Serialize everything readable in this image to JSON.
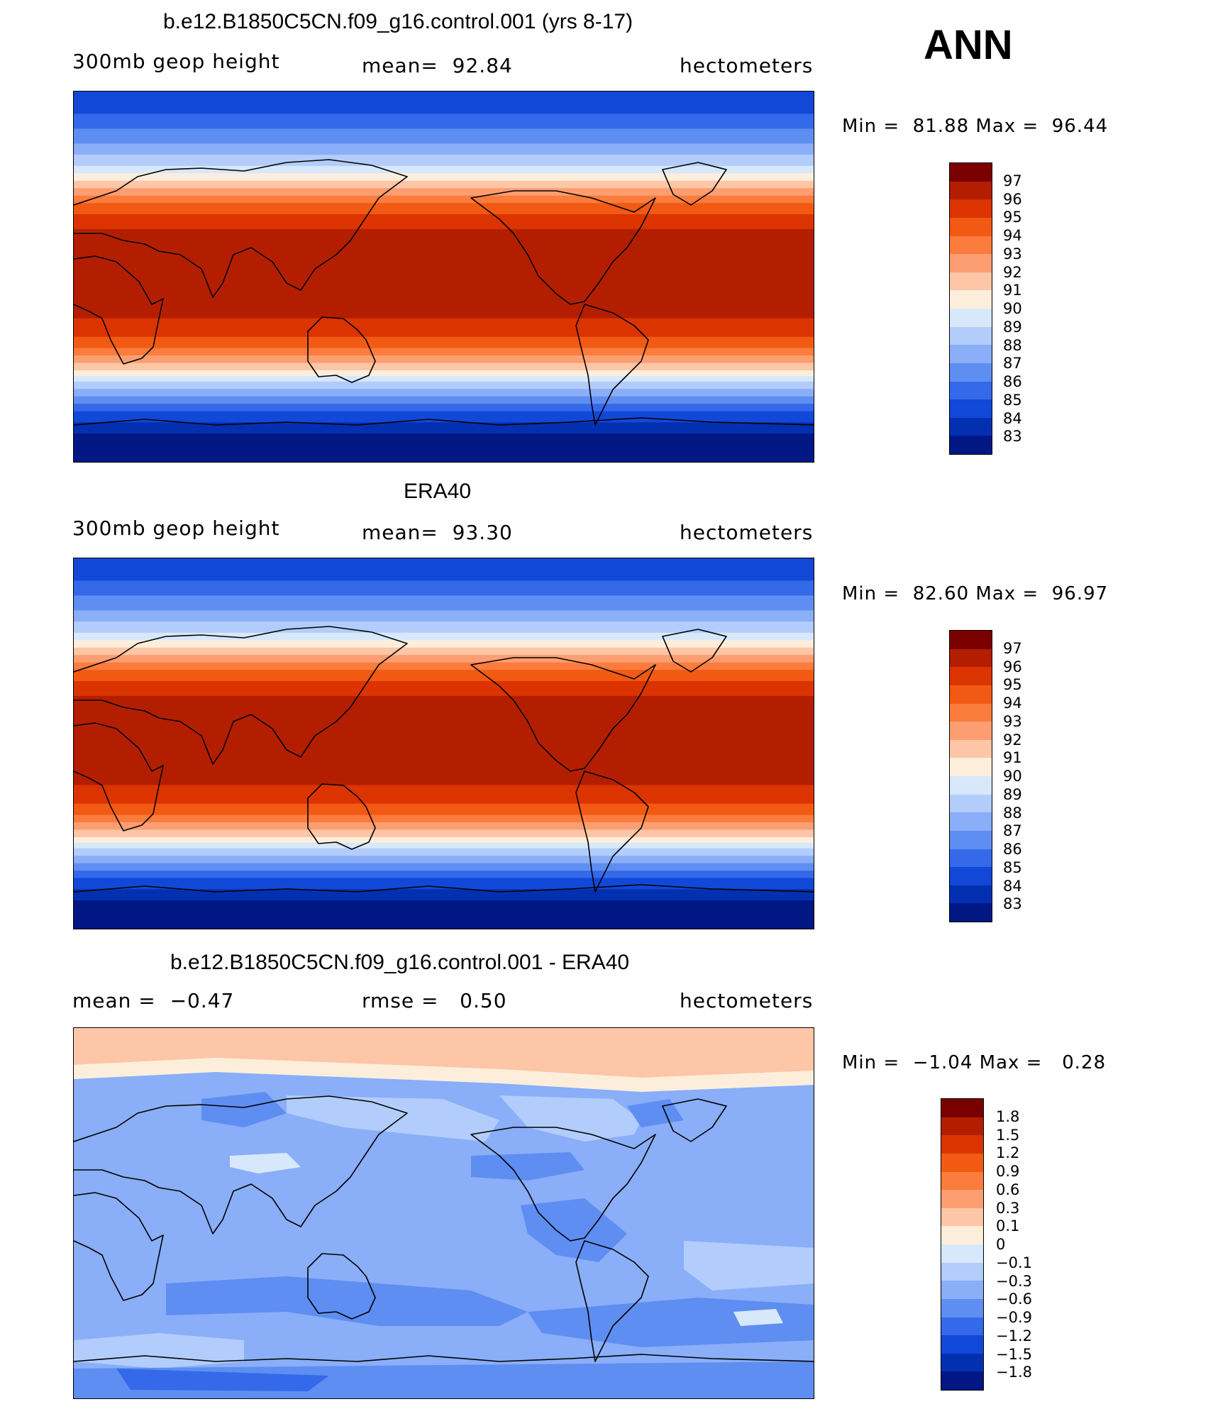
{
  "season": "ANN",
  "panels": [
    {
      "id": "model",
      "title": "b.e12.B1850C5CN.f09_g16.control.001 (yrs 8-17)",
      "left_label": "300mb geop height",
      "center_label": "mean=  92.84",
      "right_label": "hectometers",
      "minmax": "Min =  81.88 Max =  96.44",
      "colorbar_labels": [
        "97",
        "96",
        "95",
        "94",
        "93",
        "92",
        "91",
        "90",
        "89",
        "88",
        "87",
        "86",
        "85",
        "84",
        "83"
      ]
    },
    {
      "id": "obs",
      "title": "ERA40",
      "left_label": "300mb geop height",
      "center_label": "mean=  93.30",
      "right_label": "hectometers",
      "minmax": "Min =  82.60 Max =  96.97",
      "colorbar_labels": [
        "97",
        "96",
        "95",
        "94",
        "93",
        "92",
        "91",
        "90",
        "89",
        "88",
        "87",
        "86",
        "85",
        "84",
        "83"
      ]
    },
    {
      "id": "diff",
      "title": "b.e12.B1850C5CN.f09_g16.control.001 - ERA40",
      "left_label": "mean =  −0.47",
      "center_label": "rmse =   0.50",
      "right_label": "hectometers",
      "minmax": "Min =  −1.04 Max =   0.28",
      "colorbar_labels": [
        "1.8",
        "1.5",
        "1.2",
        "0.9",
        "0.6",
        "0.3",
        "0.1",
        "0",
        "−0.1",
        "−0.3",
        "−0.6",
        "−0.9",
        "−1.2",
        "−1.5",
        "−1.8"
      ]
    }
  ],
  "palette": [
    "#7a0000",
    "#b41e00",
    "#db3400",
    "#f25a14",
    "#fb7c3c",
    "#fc9e72",
    "#fdc6a6",
    "#fdeedc",
    "#d8e8fb",
    "#b2cdfb",
    "#8aaef8",
    "#5f8ef2",
    "#3469ea",
    "#1248d8",
    "#0230b0",
    "#001784"
  ],
  "colors": {
    "land_outline": "#000000",
    "frame": "#000000"
  }
}
